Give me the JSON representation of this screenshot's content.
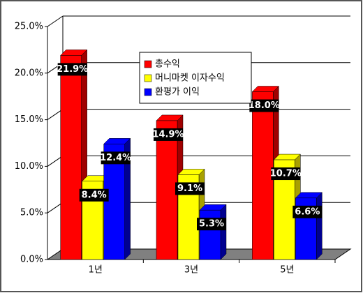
{
  "chart_data": {
    "type": "bar3d",
    "categories": [
      "1년",
      "3년",
      "5년"
    ],
    "series": [
      {
        "name": "총수익",
        "color": "#ff0000",
        "values": [
          21.9,
          14.9,
          18.0
        ],
        "value_labels": [
          "21.9%",
          "14.9%",
          "18.0%"
        ]
      },
      {
        "name": "머니마켓 이자수익",
        "color": "#ffff00",
        "values": [
          8.4,
          9.1,
          10.7
        ],
        "value_labels": [
          "8.4%",
          "9.1%",
          "10.7%"
        ]
      },
      {
        "name": "환평가 이익",
        "color": "#0000ff",
        "values": [
          12.4,
          5.3,
          6.6
        ],
        "value_labels": [
          "12.4%",
          "5.3%",
          "6.6%"
        ]
      }
    ],
    "ylim": [
      0,
      25
    ],
    "yticks": [
      {
        "value": 0,
        "label": "0.0%"
      },
      {
        "value": 5,
        "label": "5.0%"
      },
      {
        "value": 10,
        "label": "10.0%"
      },
      {
        "value": 15,
        "label": "15.0%"
      },
      {
        "value": 20,
        "label": "20.0%"
      },
      {
        "value": 25,
        "label": "25.0%"
      }
    ],
    "grid": true
  }
}
